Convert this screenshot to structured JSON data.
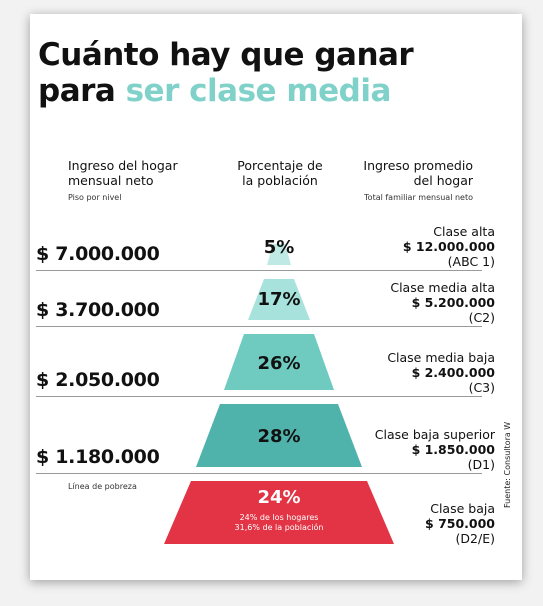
{
  "title": {
    "line1": "Cuánto hay que ganar",
    "line2_plain": "para ",
    "line2_accent": "ser clase media"
  },
  "headers": {
    "col1_line1": "Ingreso del hogar",
    "col1_line2": "mensual neto",
    "col1_sub": "Piso por nivel",
    "col2_line1": "Porcentaje de",
    "col2_line2": "la población",
    "col3_line1": "Ingreso promedio",
    "col3_line2": "del hogar",
    "col3_sub": "Total familiar mensual neto"
  },
  "levels": [
    {
      "floor": "$ 7.000.000",
      "pct": "5%",
      "name": "Clase alta",
      "avg": "$ 12.000.000",
      "code": "(ABC 1)"
    },
    {
      "floor": "$ 3.700.000",
      "pct": "17%",
      "name": "Clase media alta",
      "avg": "$ 5.200.000",
      "code": "(C2)"
    },
    {
      "floor": "$ 2.050.000",
      "pct": "26%",
      "name": "Clase media baja",
      "avg": "$ 2.400.000",
      "code": "(C3)"
    },
    {
      "floor": "$ 1.180.000",
      "pct": "28%",
      "name": "Clase baja superior",
      "avg": "$ 1.850.000",
      "code": "(D1)"
    },
    {
      "floor_label": "Línea de pobreza",
      "pct": "24%",
      "pct_note1": "24% de los hogares",
      "pct_note2": "31,6% de la población",
      "name": "Clase baja",
      "avg": "$ 750.000",
      "code": "(D2/E)"
    }
  ],
  "source": "Fuente: Consultora W",
  "colors": {
    "accent": "#7fd1c9",
    "tier1": "#bfe9e4",
    "tier2": "#a7e3dc",
    "tier3": "#6fcac0",
    "tier4": "#4fb3ab",
    "poverty": "#e23444"
  }
}
